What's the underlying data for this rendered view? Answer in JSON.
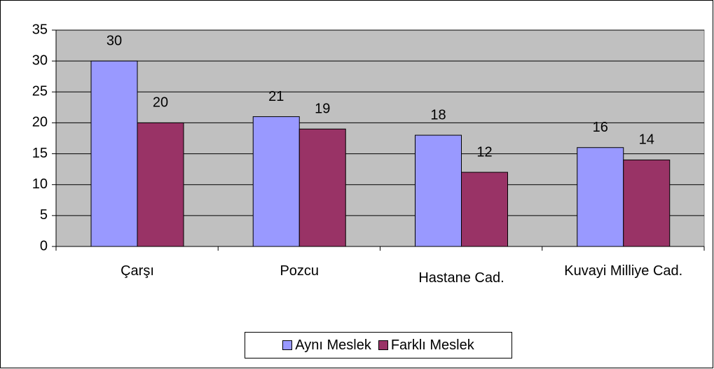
{
  "chart_data": {
    "type": "bar",
    "categories": [
      "Çarşı",
      "Pozcu",
      "Hastane Cad.",
      "Kuvayi Milliye Cad."
    ],
    "series": [
      {
        "name": "Aynı Meslek",
        "color": "#9999ff",
        "values": [
          30,
          21,
          18,
          16
        ]
      },
      {
        "name": "Farklı Meslek",
        "color": "#993366",
        "values": [
          20,
          19,
          12,
          14
        ]
      }
    ],
    "ylim": [
      0,
      35
    ],
    "yticks": [
      0,
      5,
      10,
      15,
      20,
      25,
      30,
      35
    ],
    "grid": true,
    "plot_background": "#c0c0c0",
    "legend": "bottom"
  }
}
